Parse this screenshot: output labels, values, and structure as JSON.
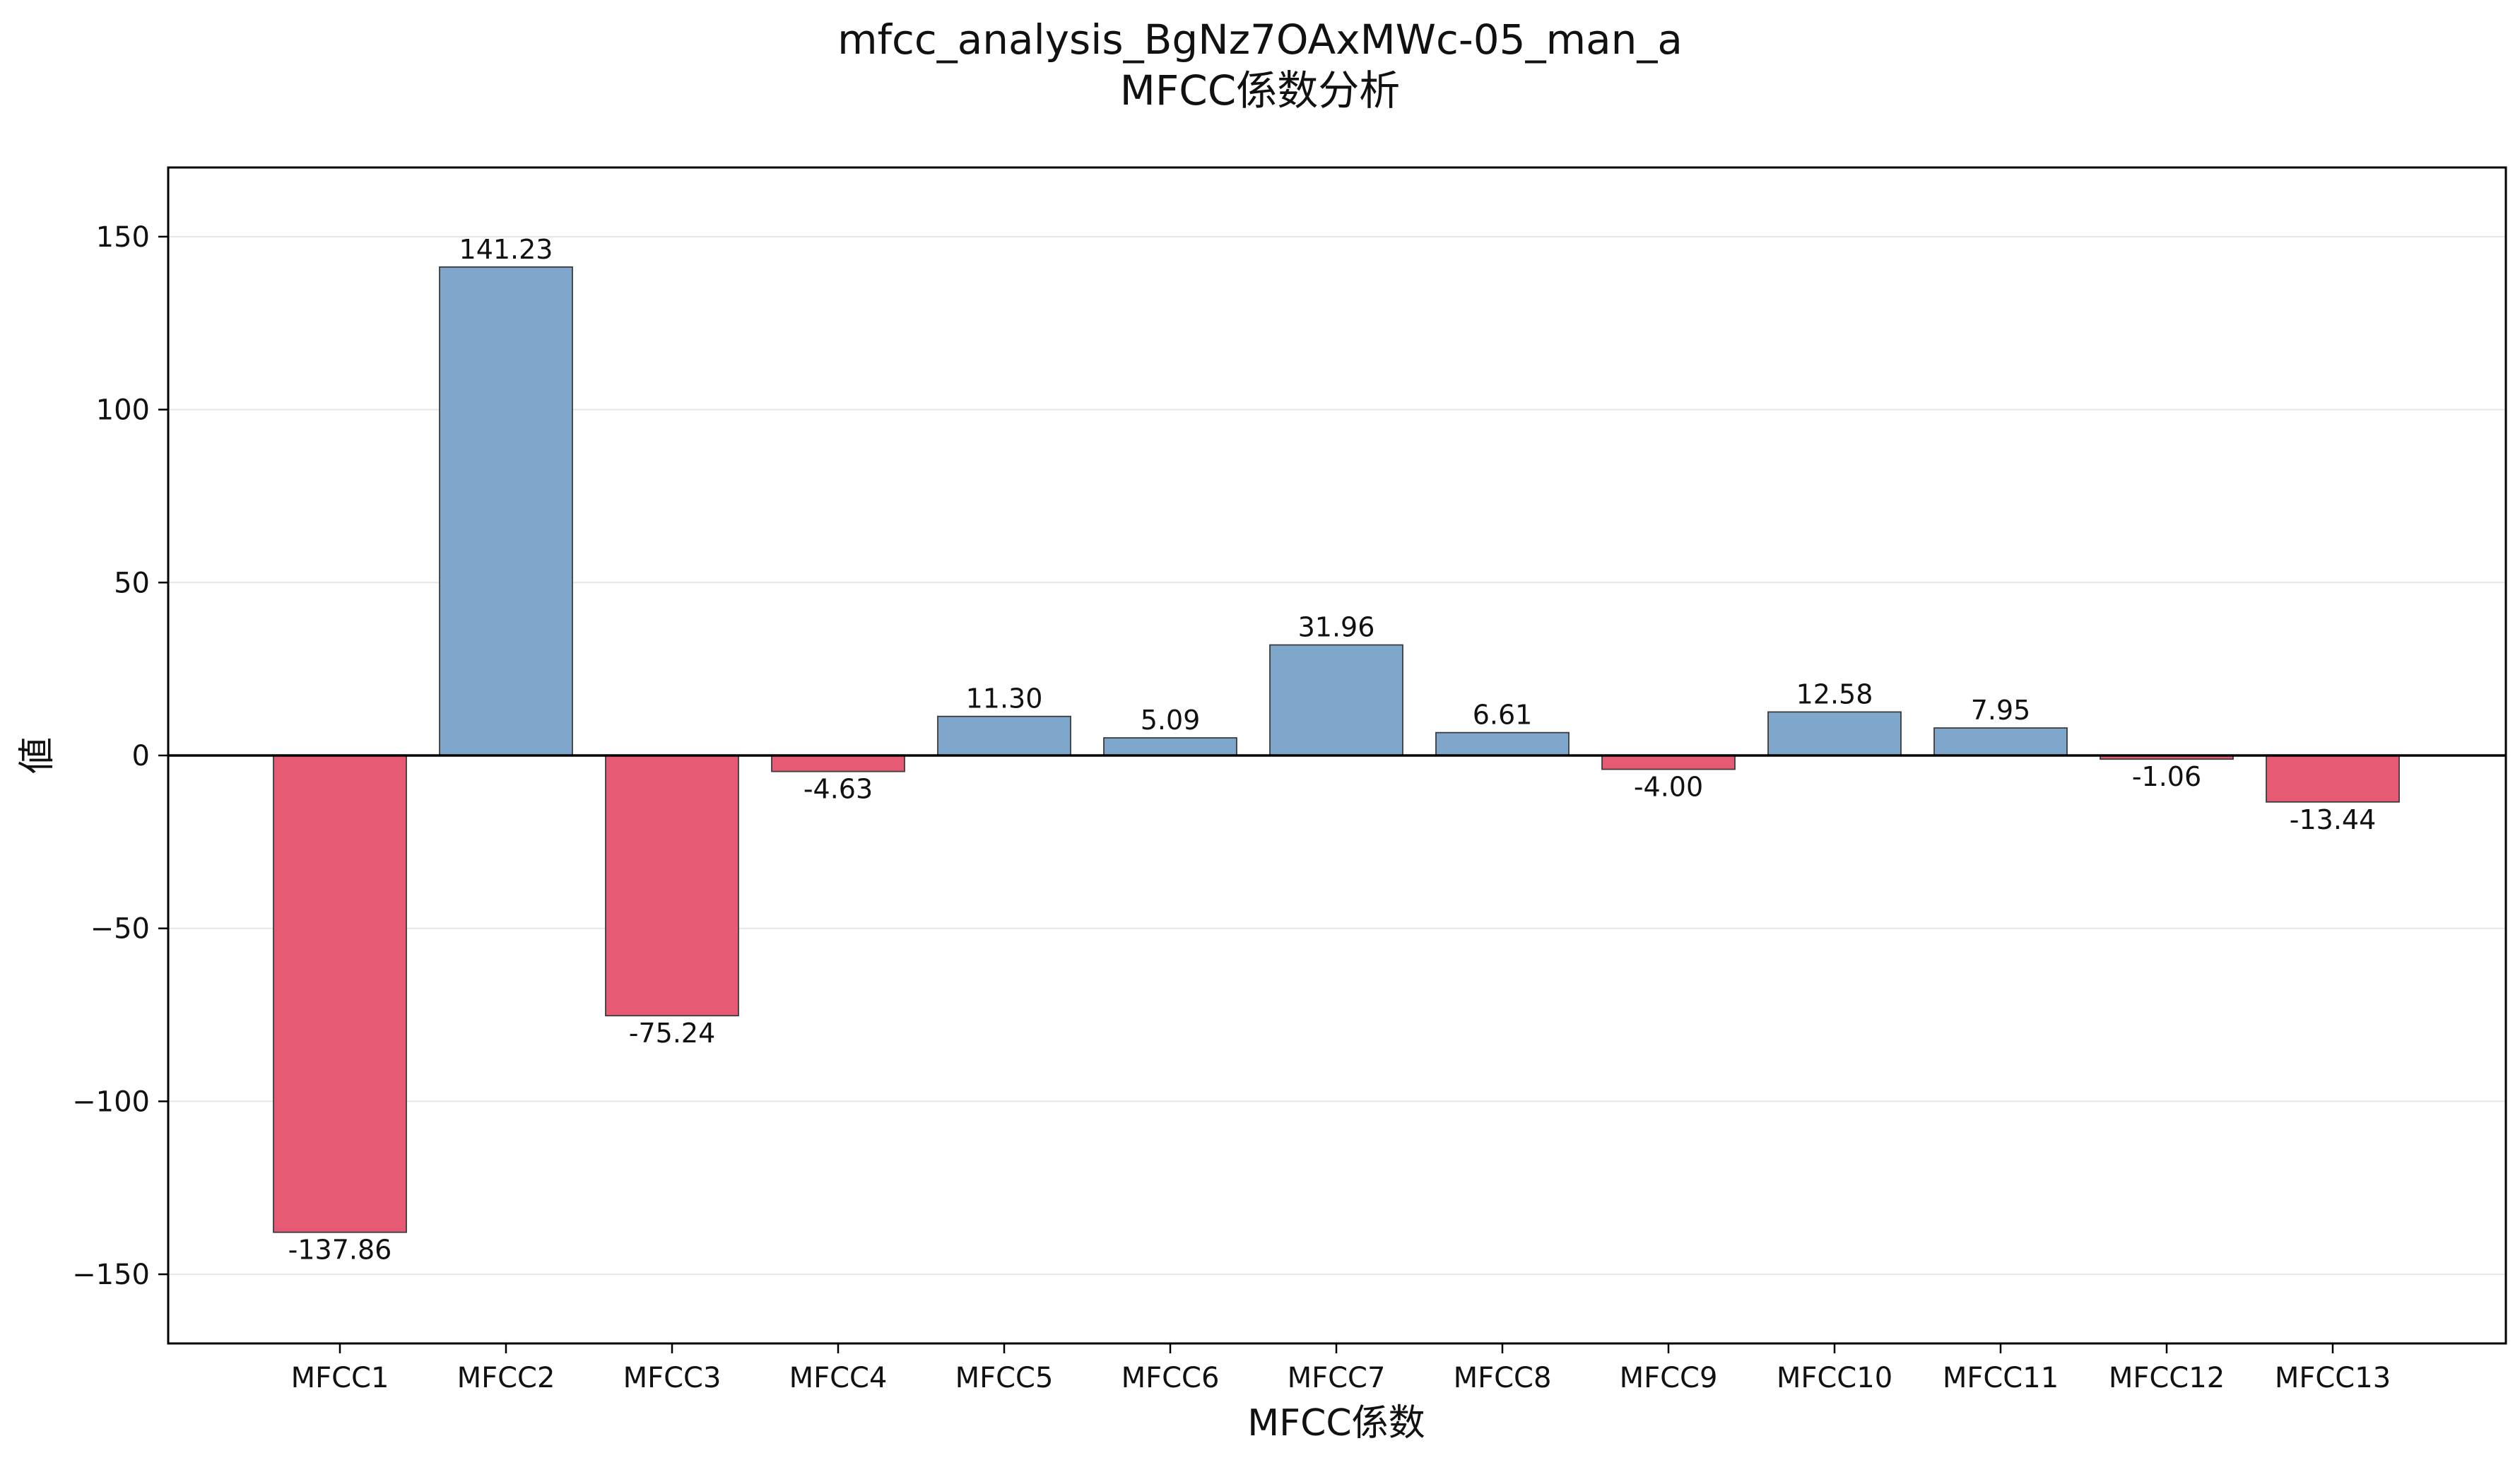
{
  "chart_data": {
    "type": "bar",
    "title": "mfcc_analysis_BgNz7OAxMWc-05_man_a",
    "subtitle": "MFCC係数分析",
    "xlabel": "MFCC係数",
    "ylabel": "値",
    "categories": [
      "MFCC1",
      "MFCC2",
      "MFCC3",
      "MFCC4",
      "MFCC5",
      "MFCC6",
      "MFCC7",
      "MFCC8",
      "MFCC9",
      "MFCC10",
      "MFCC11",
      "MFCC12",
      "MFCC13"
    ],
    "values": [
      -137.86,
      141.23,
      -75.24,
      -4.63,
      11.3,
      5.09,
      31.96,
      6.61,
      -4.0,
      12.58,
      7.95,
      -1.06,
      -13.44
    ],
    "value_labels": [
      "-137.86",
      "141.23",
      "-75.24",
      "-4.63",
      "11.30",
      "5.09",
      "31.96",
      "6.61",
      "-4.00",
      "12.58",
      "7.95",
      "-1.06",
      "-13.44"
    ],
    "ylim": [
      -170,
      170
    ],
    "yticks": [
      150,
      100,
      50,
      0,
      -50,
      -100,
      -150
    ],
    "ytick_labels": [
      "150",
      "100",
      "50",
      "0",
      "−50",
      "−100",
      "−150"
    ],
    "grid": "horizontal",
    "legend": "none",
    "colors": {
      "positive": "#7ea7cb",
      "negative": "#e65a74"
    }
  }
}
